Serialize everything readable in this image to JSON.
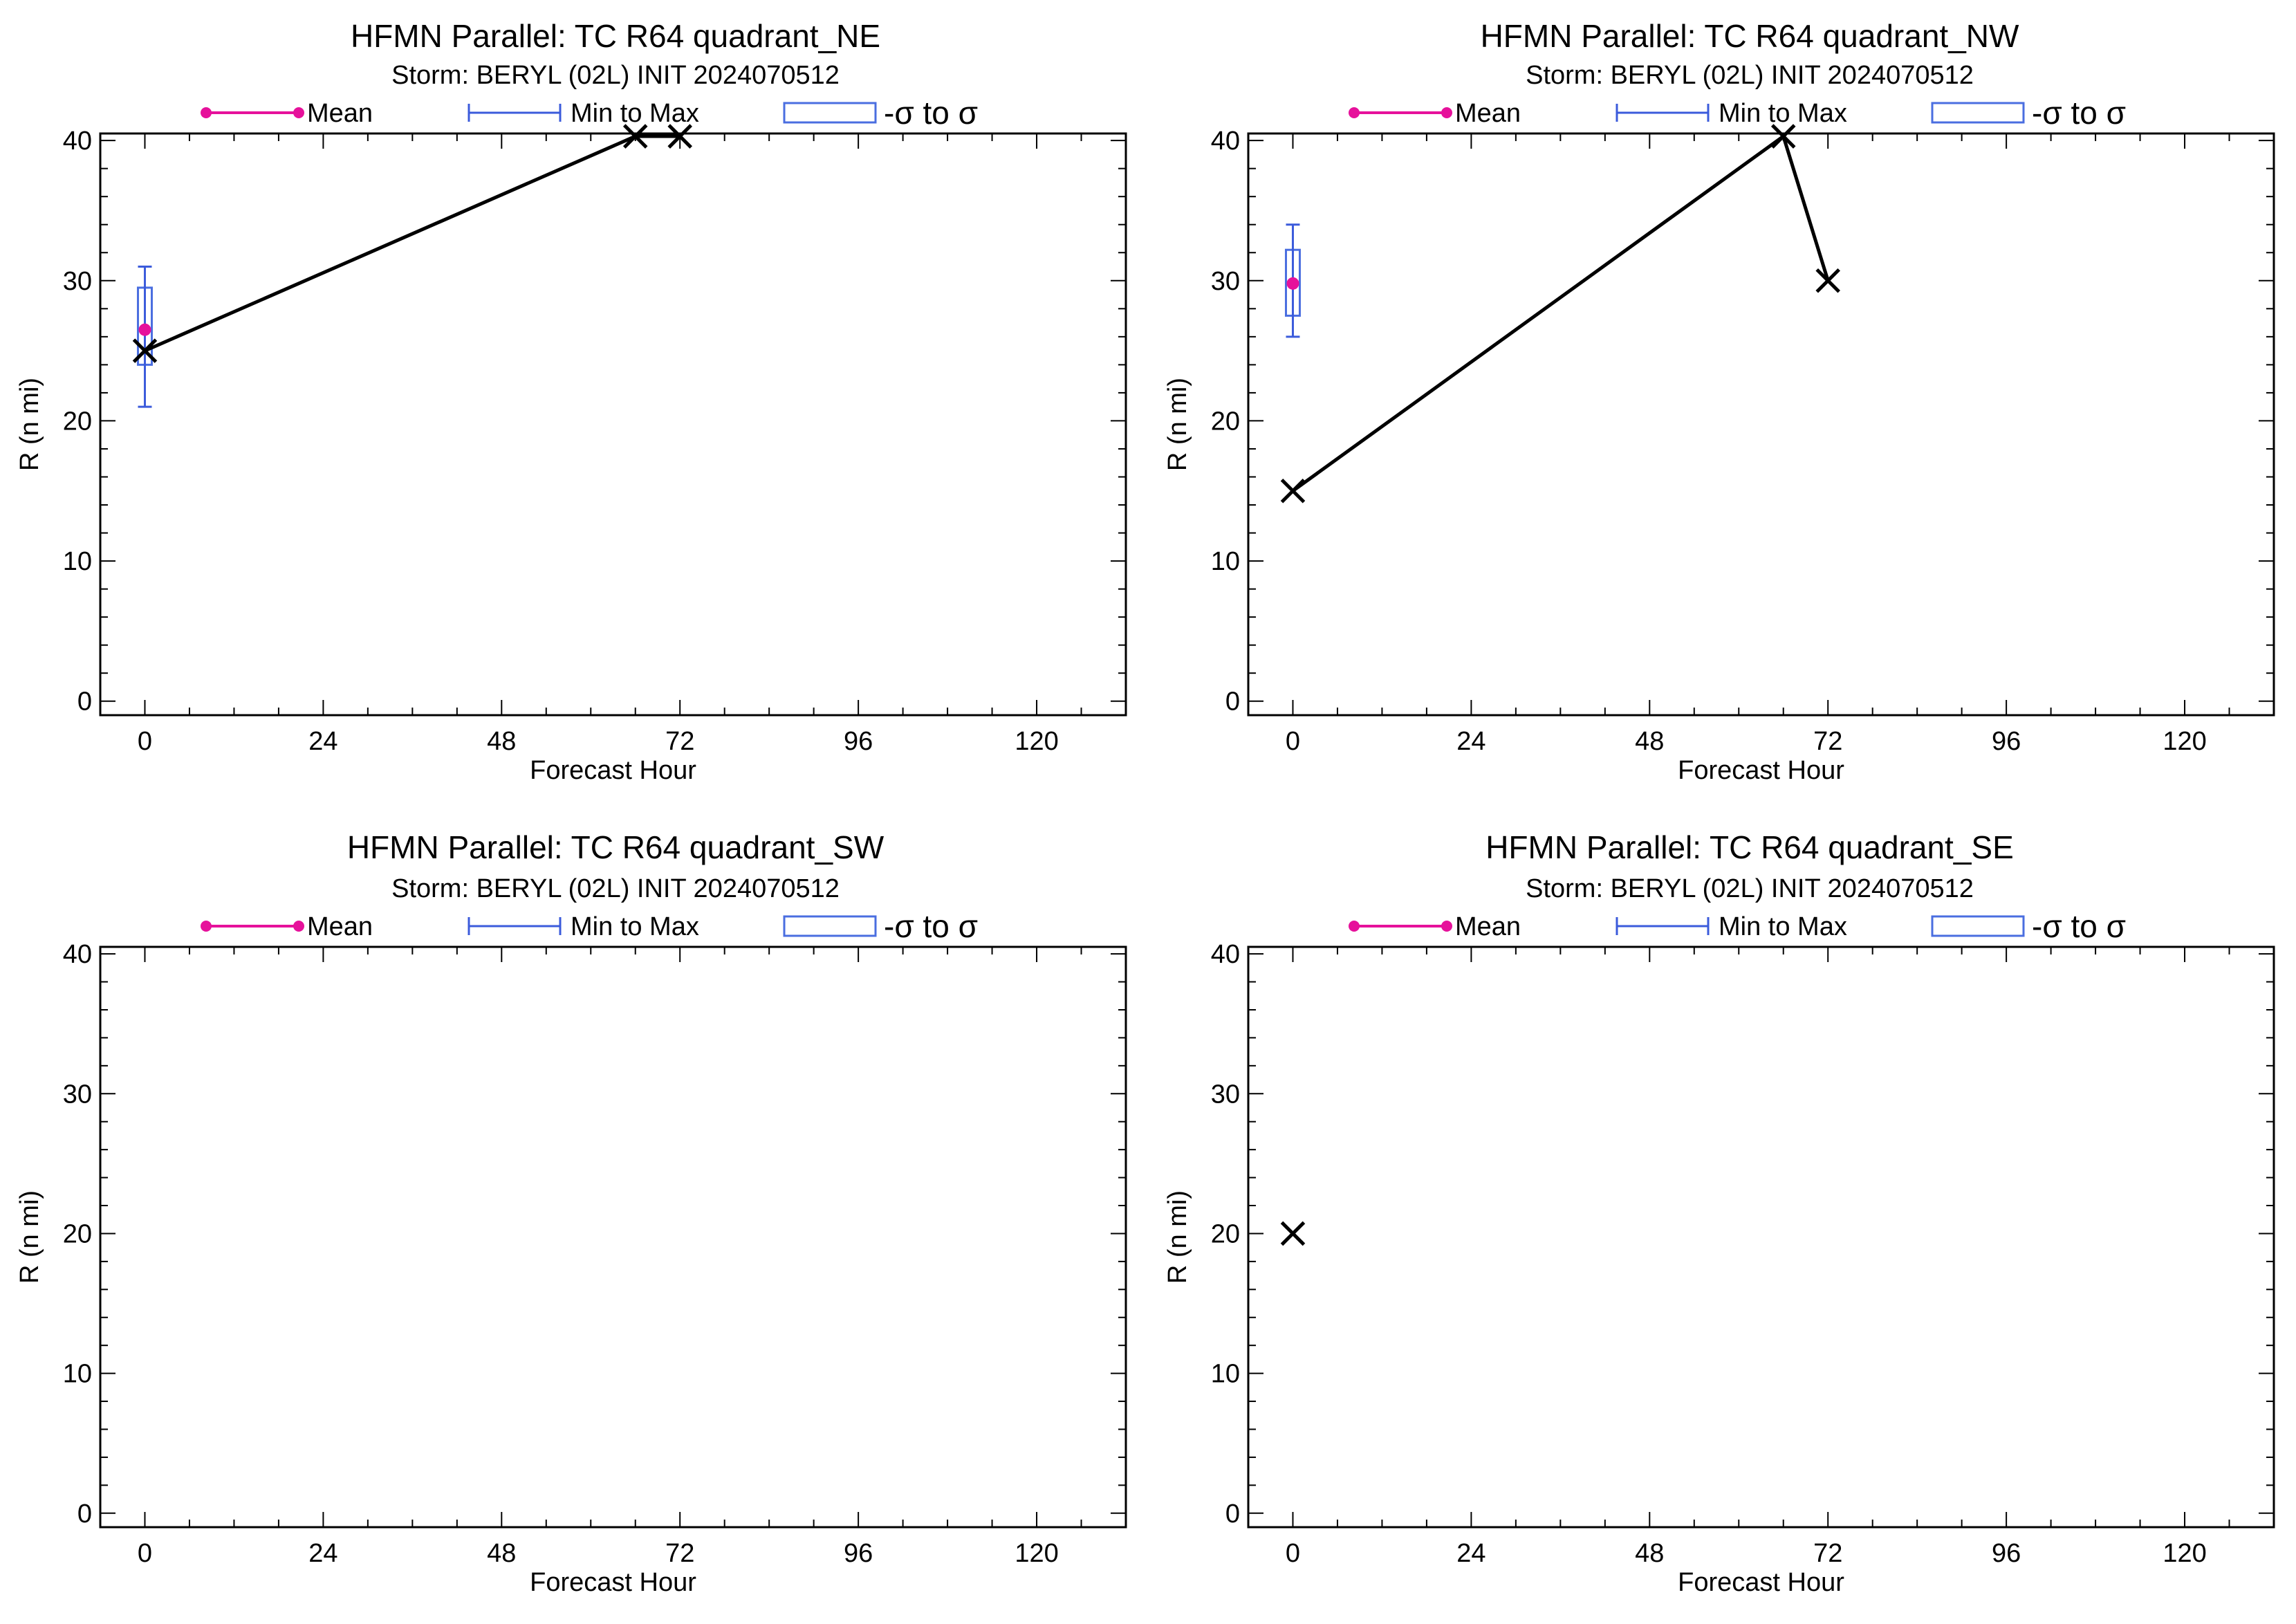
{
  "chart_data": [
    {
      "type": "line",
      "title": "HFMN Parallel: TC  R64 quadrant_NE",
      "subtitle": "Storm: BERYL (02L) INIT 2024070512",
      "xlabel": "Forecast Hour",
      "ylabel": "R (n mi)",
      "xlim": [
        -6,
        132
      ],
      "ylim": [
        -1,
        40.5
      ],
      "xticks": [
        0,
        24,
        48,
        72,
        96,
        120
      ],
      "yticks": [
        0,
        10,
        20,
        30,
        40
      ],
      "legend": [
        "Mean",
        "Min to Max",
        "-σ to σ"
      ],
      "legend_position": "top",
      "grid": false,
      "series": [
        {
          "x": [
            0,
            66,
            72
          ],
          "y": [
            25,
            40.3,
            40.3
          ]
        }
      ],
      "stats": [
        {
          "x": 0,
          "mean": 26.5,
          "min": 21,
          "max": 31,
          "sigma_low": 24,
          "sigma_high": 29.5
        }
      ]
    },
    {
      "type": "line",
      "title": "HFMN Parallel: TC  R64 quadrant_NW",
      "subtitle": "Storm: BERYL (02L) INIT 2024070512",
      "xlabel": "Forecast Hour",
      "ylabel": "R (n mi)",
      "xlim": [
        -6,
        132
      ],
      "ylim": [
        -1,
        40.5
      ],
      "xticks": [
        0,
        24,
        48,
        72,
        96,
        120
      ],
      "yticks": [
        0,
        10,
        20,
        30,
        40
      ],
      "legend": [
        "Mean",
        "Min to Max",
        "-σ to σ"
      ],
      "legend_position": "top",
      "grid": false,
      "series": [
        {
          "x": [
            0,
            66,
            72
          ],
          "y": [
            15,
            40.3,
            30
          ]
        }
      ],
      "stats": [
        {
          "x": 0,
          "mean": 29.8,
          "min": 26,
          "max": 34,
          "sigma_low": 27.5,
          "sigma_high": 32.2
        }
      ]
    },
    {
      "type": "line",
      "title": "HFMN Parallel: TC  R64 quadrant_SW",
      "subtitle": "Storm: BERYL (02L) INIT 2024070512",
      "xlabel": "Forecast Hour",
      "ylabel": "R (n mi)",
      "xlim": [
        -6,
        132
      ],
      "ylim": [
        -1,
        40.5
      ],
      "xticks": [
        0,
        24,
        48,
        72,
        96,
        120
      ],
      "yticks": [
        0,
        10,
        20,
        30,
        40
      ],
      "legend": [
        "Mean",
        "Min to Max",
        "-σ to σ"
      ],
      "legend_position": "top",
      "grid": false,
      "series": [
        {
          "x": [],
          "y": []
        }
      ],
      "stats": []
    },
    {
      "type": "line",
      "title": "HFMN Parallel: TC  R64 quadrant_SE",
      "subtitle": "Storm: BERYL (02L) INIT 2024070512",
      "xlabel": "Forecast Hour",
      "ylabel": "R (n mi)",
      "xlim": [
        -6,
        132
      ],
      "ylim": [
        -1,
        40.5
      ],
      "xticks": [
        0,
        24,
        48,
        72,
        96,
        120
      ],
      "yticks": [
        0,
        10,
        20,
        30,
        40
      ],
      "legend": [
        "Mean",
        "Min to Max",
        "-σ to σ"
      ],
      "legend_position": "top",
      "grid": false,
      "series": [
        {
          "x": [
            0
          ],
          "y": [
            20
          ]
        }
      ],
      "stats": []
    }
  ],
  "colors": {
    "mean": "#e6119b",
    "range": "#3b5bdb",
    "sigma_box": "#4a6ee0",
    "line": "#000000"
  }
}
